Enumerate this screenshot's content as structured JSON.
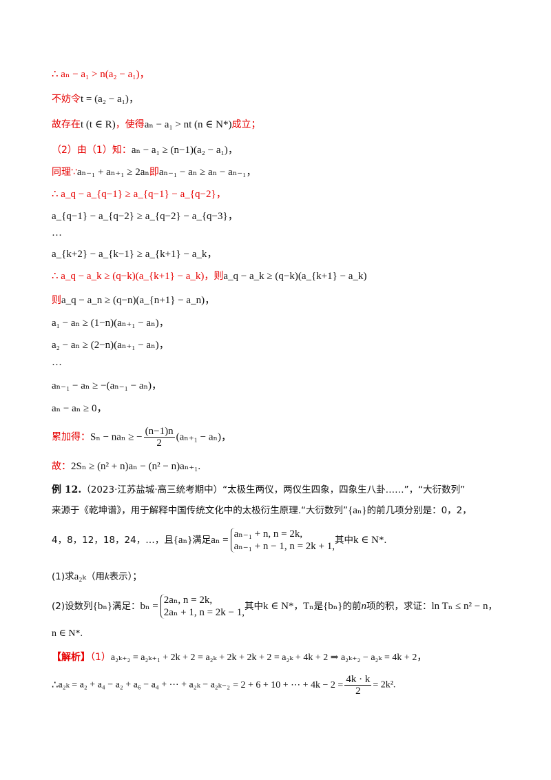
{
  "lines": {
    "l1": "∴ aₙ − a₁ > n(a₂ − a₁)，",
    "l2a": "不妨令",
    "l2b": "t = (a₂ − a₁)，",
    "l3a": "故存在",
    "l3b": "t (t ∈ R)",
    "l3c": "，使得",
    "l3d": "aₙ − a₁ > nt (n ∈ N*)",
    "l3e": "成立；",
    "l4a": "（2）由（1）知：",
    "l4b": "aₙ − a₁ ≥ (n−1)(a₂ − a₁)，",
    "l5a": "同理∵",
    "l5b": "aₙ₋₁ + aₙ₊₁ ≥ 2aₙ",
    "l5c": "即",
    "l5d": "aₙ₋₁ − aₙ ≥ aₙ − aₙ₋₁，",
    "l6": "∴ a_q − a_{q−1} ≥ a_{q−1} − a_{q−2}，",
    "l7": "a_{q−1} − a_{q−2} ≥ a_{q−2} − a_{q−3}，",
    "l8": "…",
    "l9": "a_{k+2} − a_{k−1} ≥ a_{k+1} − a_k，",
    "l10a": "∴ a_q − a_k ≥ (q−k)(a_{k+1} − a_k)",
    "l10b": "，则",
    "l10c": "a_q − a_k ≥ (q−k)(a_{k+1} − a_k)",
    "l11a": "则",
    "l11b": "a_q − a_n ≥ (q−n)(a_{n+1} − a_n)，",
    "l12": "a₁ − aₙ ≥ (1−n)(aₙ₊₁ − aₙ)，",
    "l13": "a₂ − aₙ ≥ (2−n)(aₙ₊₁ − aₙ)，",
    "l14": "…",
    "l15": "aₙ₋₁ − aₙ ≥ −(aₙ₋₁ − aₙ)，",
    "l16": "aₙ − aₙ ≥ 0，",
    "l17a": "累加得：",
    "l17b": "Sₙ − naₙ ≥ −",
    "l17c": "(n−1)n",
    "l17d": "2",
    "l17e": "(aₙ₊₁ − aₙ)，",
    "l18a": "故：",
    "l18b": "2Sₙ ≥ (n² + n)aₙ − (n² − n)aₙ₊₁."
  },
  "example": {
    "label": "例 12.",
    "p1": "（2023·江苏盐城·高三统考期中）“太极生两仪，两仪生四象，四象生八卦……”，“大衍数列”",
    "p2a": "来源于《乾坤谱》，用于解释中国传统文化中的太极衍生原理.“大衍数列”",
    "p2b": "{aₙ}",
    "p2c": "的前几项分别是：0，2，",
    "p3a": "4，8，12，18，24，…，且",
    "p3b": "{aₙ}",
    "p3c": "满足",
    "p3d": "aₙ =",
    "p3e1": "aₙ₋₁ + n, n = 2k,",
    "p3e2": "aₙ₋₁ + n − 1, n = 2k + 1,",
    "p3f": "其中",
    "p3g": "k ∈ N*.",
    "q1a": "(1)求",
    "q1b": "a₂ₖ",
    "q1c": "（用",
    "q1d": "k",
    "q1e": "表示）；",
    "q2a": "(2)设数列",
    "q2b": "{bₙ}",
    "q2c": "满足：",
    "q2d": "bₙ =",
    "q2e1": "2aₙ, n = 2k,",
    "q2e2": "2aₙ + 1, n = 2k − 1,",
    "q2f": "其中",
    "q2g": "k ∈ N*",
    "q2h": "，",
    "q2i": "Tₙ",
    "q2j": "是",
    "q2k": "{bₙ}",
    "q2l": "的前",
    "q2m": "n",
    "q2n": "项的积，求证：",
    "q2o": "ln Tₙ ≤ n² − n",
    "q2p": "，",
    "q2q": "n ∈ N*.",
    "s1a": "【解析】",
    "s1b": "（1）",
    "s1c": "a₂ₖ₊₂ = a₂ₖ₊₁ + 2k + 2 = a₂ₖ + 2k + 2k + 2 = a₂ₖ + 4k + 2 ⇒ a₂ₖ₊₂ − a₂ₖ = 4k + 2，",
    "s2a": "∴",
    "s2b": "a₂ₖ = a₂ + a₄ − a₂ + a₆ − a₄ + ⋯ + a₂ₖ − a₂ₖ₋₂",
    "s2c": "= 2 + 6 + 10 + ⋯ + 4k − 2 =",
    "s2d": "4k · k",
    "s2e": "2",
    "s2f": "= 2k²."
  }
}
